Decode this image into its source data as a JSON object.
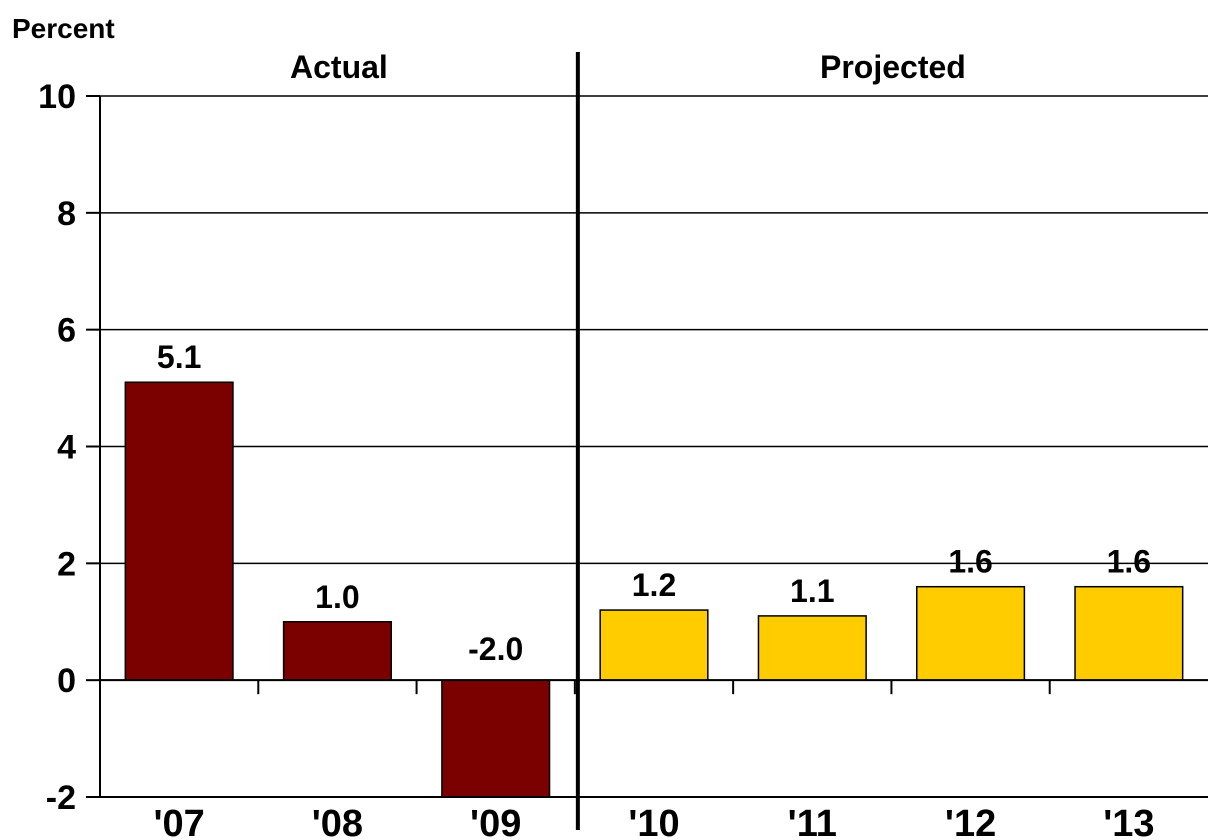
{
  "chart_data": {
    "type": "bar",
    "title": "",
    "xlabel": "",
    "ylabel": "Percent",
    "ylim": [
      -2,
      10
    ],
    "yticks": [
      -2,
      0,
      2,
      4,
      6,
      8,
      10
    ],
    "grid": true,
    "categories": [
      "'07",
      "'08",
      "'09",
      "'10",
      "'11",
      "'12",
      "'13"
    ],
    "values": [
      5.1,
      1.0,
      -2.0,
      1.2,
      1.1,
      1.6,
      1.6
    ],
    "data_labels": [
      "5.1",
      "1.0",
      "-2.0",
      "1.2",
      "1.1",
      "1.6",
      "1.6"
    ],
    "groups": [
      {
        "label": "Actual",
        "categories": [
          "'07",
          "'08",
          "'09"
        ],
        "color": "#7B0000"
      },
      {
        "label": "Projected",
        "categories": [
          "'10",
          "'11",
          "'12",
          "'13"
        ],
        "color": "#FFCC00"
      }
    ]
  }
}
